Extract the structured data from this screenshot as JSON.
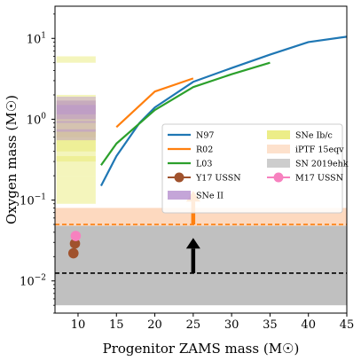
{
  "chart_data": {
    "type": "line",
    "xlabel": "Progenitor ZAMS mass (M☉)",
    "ylabel": "Oxygen mass (M☉)",
    "x_scale": "linear",
    "y_scale": "log",
    "xlim": [
      7,
      45
    ],
    "ylim": [
      0.004,
      25
    ],
    "x_ticks": [
      10,
      15,
      20,
      25,
      30,
      35,
      40,
      45
    ],
    "y_ticks": [
      {
        "value": 0.01,
        "base": "10",
        "exp": "−2"
      },
      {
        "value": 0.1,
        "base": "10",
        "exp": "−1"
      },
      {
        "value": 1,
        "base": "10",
        "exp": "0"
      },
      {
        "value": 10,
        "base": "10",
        "exp": "1"
      }
    ],
    "grid": false,
    "legend_position": "center-right",
    "series": [
      {
        "name": "N97",
        "kind": "line",
        "color": "#1f77b4",
        "x": [
          13,
          15,
          18,
          20,
          25,
          30,
          35,
          40,
          45
        ],
        "y": [
          0.15,
          0.35,
          0.9,
          1.4,
          2.9,
          4.3,
          6.3,
          9.0,
          10.5
        ]
      },
      {
        "name": "R02",
        "kind": "line",
        "color": "#ff7f0e",
        "x": [
          15,
          20,
          25
        ],
        "y": [
          0.8,
          2.2,
          3.2
        ]
      },
      {
        "name": "L03",
        "kind": "line",
        "color": "#2ca02c",
        "x": [
          13,
          15,
          20,
          25,
          30,
          35
        ],
        "y": [
          0.27,
          0.5,
          1.3,
          2.5,
          3.6,
          5.0
        ]
      },
      {
        "name": "Y17 USSN",
        "kind": "points",
        "color": "#a0522d",
        "x": [
          9.4,
          9.6
        ],
        "y": [
          0.022,
          0.029
        ]
      },
      {
        "name": "M17 USSN",
        "kind": "points",
        "color": "#f781bf",
        "x": [
          9.7
        ],
        "y": [
          0.036
        ]
      }
    ],
    "bands": [
      {
        "name": "SN 2019ehk",
        "color": "#c0c0c0",
        "y_range": [
          0.005,
          0.05
        ]
      },
      {
        "name": "iPTF 15eqv",
        "color": "#fdd9bf",
        "y_range": [
          0.048,
          0.08
        ]
      }
    ],
    "reference_lines": [
      {
        "y": 0.0125,
        "color": "#000000",
        "style": "dashed"
      },
      {
        "y": 0.05,
        "color": "#ff7f0e",
        "style": "dashed"
      }
    ],
    "arrows": [
      {
        "x": 25,
        "y_from": 0.0125,
        "y_to": 0.034,
        "color": "#000000"
      },
      {
        "x": 25,
        "y_from": 0.05,
        "y_to": 0.13,
        "color": "#ff7f0e"
      }
    ],
    "strip_boxes": {
      "x_range": [
        7.2,
        12.3
      ],
      "sets": [
        {
          "name": "SNe Ib/c",
          "color": "#e7e96a",
          "opacity": 0.45,
          "ranges": [
            [
              5.0,
              6.0
            ],
            [
              0.09,
              0.2
            ],
            [
              0.2,
              0.35
            ],
            [
              0.3,
              0.5
            ],
            [
              0.4,
              0.7
            ],
            [
              0.5,
              0.9
            ],
            [
              0.6,
              1.3
            ],
            [
              0.9,
              1.7
            ],
            [
              1.3,
              2.0
            ]
          ]
        },
        {
          "name": "SNe II",
          "color": "#b58fce",
          "opacity": 0.45,
          "ranges": [
            [
              1.3,
              1.9
            ],
            [
              1.15,
              1.7
            ],
            [
              1.0,
              1.5
            ],
            [
              0.9,
              1.3
            ],
            [
              0.7,
              0.95
            ],
            [
              0.55,
              0.75
            ]
          ]
        }
      ]
    },
    "legend": [
      {
        "label": "N97",
        "color": "#1f77b4",
        "kind": "line"
      },
      {
        "label": "SNe Ib/c",
        "color": "#e7e96a",
        "kind": "patch"
      },
      {
        "label": "R02",
        "color": "#ff7f0e",
        "kind": "line"
      },
      {
        "label": "iPTF 15eqv",
        "color": "#fdd9bf",
        "kind": "patch"
      },
      {
        "label": "L03",
        "color": "#2ca02c",
        "kind": "line"
      },
      {
        "label": "SN 2019ehk",
        "color": "#c0c0c0",
        "kind": "patch"
      },
      {
        "label": "Y17 USSN",
        "color": "#a0522d",
        "kind": "marker-line"
      },
      {
        "label": "M17 USSN",
        "color": "#f781bf",
        "kind": "marker-line"
      },
      {
        "label": "SNe II",
        "color": "#b58fce",
        "kind": "patch"
      }
    ]
  }
}
